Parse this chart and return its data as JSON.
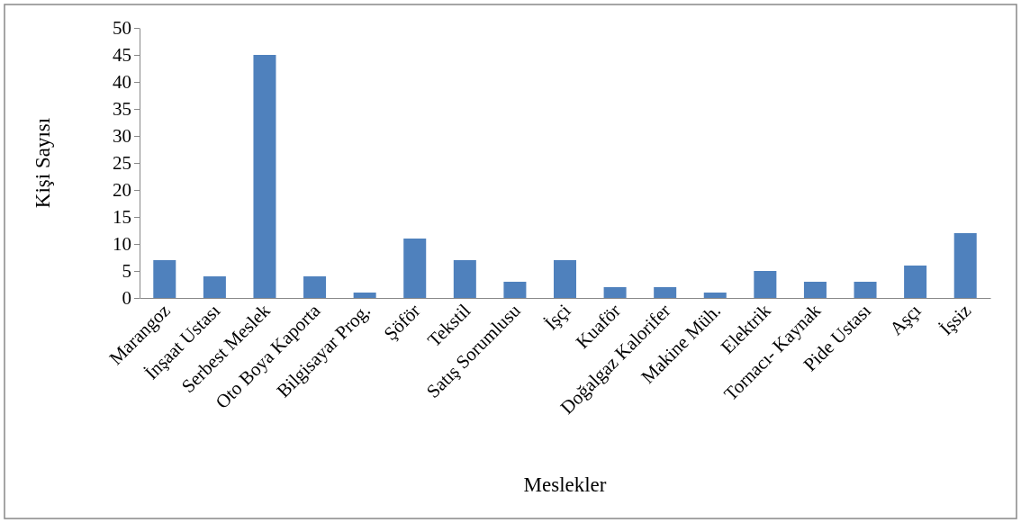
{
  "chart_data": {
    "type": "bar",
    "xlabel": "Meslekler",
    "ylabel": "Kişi Sayısı",
    "categories": [
      "Marangoz",
      "İnşaat Ustası",
      "Serbest Meslek",
      "Oto Boya Kaporta",
      "Bilgisayar Prog.",
      "Şöför",
      "Tekstil",
      "Satış Sorumlusu",
      "İşçi",
      "Kuaför",
      "Doğalgaz Kalorifer",
      "Makine Müh.",
      "Elektrik",
      "Tornacı- Kaynak",
      "Pide Ustası",
      "Aşçı",
      "İşsiz"
    ],
    "values": [
      7,
      4,
      45,
      4,
      1,
      11,
      7,
      3,
      7,
      2,
      2,
      1,
      5,
      3,
      3,
      6,
      12
    ],
    "color": "#4f81bd",
    "ylim": [
      0,
      50
    ],
    "yticks": [
      0,
      5,
      10,
      15,
      20,
      25,
      30,
      35,
      40,
      45,
      50
    ],
    "grid": false
  }
}
